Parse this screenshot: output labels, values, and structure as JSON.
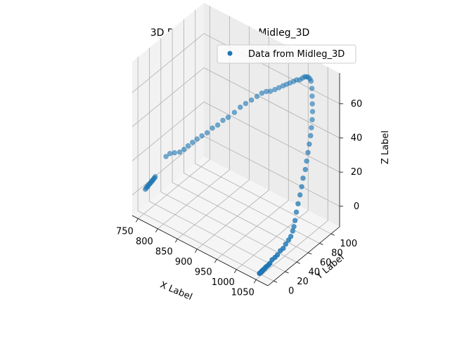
{
  "chart_data": {
    "type": "scatter",
    "projection": "3d",
    "title": "3D Plot for Data from Midleg_3D",
    "xlabel": "X Label",
    "ylabel": "Y Label",
    "zlabel": "Z Label",
    "x_ticks": [
      "750",
      "800",
      "850",
      "900",
      "950",
      "1000",
      "1050"
    ],
    "y_ticks": [
      "0",
      "20",
      "40",
      "60",
      "80",
      "100"
    ],
    "z_ticks": [
      "0",
      "20",
      "40",
      "60"
    ],
    "xlim": [
      735,
      1080
    ],
    "ylim": [
      -10,
      115
    ],
    "zlim": [
      -12,
      78
    ],
    "grid": true,
    "legend": {
      "position": "top-right",
      "entries": [
        "Data from Midleg_3D"
      ]
    },
    "color": "#1f77b4",
    "series": [
      {
        "name": "Data from Midleg_3D",
        "points": [
          [
            751,
            2,
            2
          ],
          [
            752,
            3,
            2.5
          ],
          [
            752,
            4,
            3
          ],
          [
            753,
            5,
            3
          ],
          [
            753,
            6,
            3.5
          ],
          [
            754,
            7,
            4
          ],
          [
            754,
            8,
            4
          ],
          [
            755,
            9,
            4.5
          ],
          [
            755,
            10,
            5
          ],
          [
            756,
            11,
            5
          ],
          [
            756,
            12,
            5.5
          ],
          [
            757,
            13,
            6
          ],
          [
            757,
            14,
            6
          ],
          [
            757,
            15,
            6.5
          ],
          [
            786,
            14,
            22
          ],
          [
            793,
            16,
            24
          ],
          [
            802,
            18,
            25
          ],
          [
            812,
            20,
            26
          ],
          [
            820,
            22,
            28
          ],
          [
            826,
            25,
            30
          ],
          [
            833,
            28,
            32
          ],
          [
            840,
            31,
            34
          ],
          [
            848,
            34,
            36
          ],
          [
            857,
            37,
            38
          ],
          [
            866,
            40,
            41
          ],
          [
            875,
            43,
            43
          ],
          [
            884,
            46,
            46
          ],
          [
            893,
            49,
            48
          ],
          [
            903,
            53,
            51
          ],
          [
            912,
            57,
            54
          ],
          [
            920,
            61,
            56
          ],
          [
            929,
            65,
            58
          ],
          [
            937,
            69,
            60
          ],
          [
            945,
            72,
            62
          ],
          [
            952,
            75,
            63
          ],
          [
            958,
            78,
            63
          ],
          [
            965,
            81,
            64
          ],
          [
            971,
            84,
            65
          ],
          [
            977,
            87,
            66
          ],
          [
            983,
            89,
            67
          ],
          [
            989,
            91,
            68
          ],
          [
            995,
            93,
            69
          ],
          [
            1000,
            95,
            70
          ],
          [
            1005,
            97,
            70
          ],
          [
            1009,
            99,
            71
          ],
          [
            1013,
            100,
            72
          ],
          [
            1016,
            101,
            72
          ],
          [
            1019,
            102,
            72
          ],
          [
            1022,
            103,
            71
          ],
          [
            1025,
            103,
            70
          ],
          [
            1027,
            103,
            66
          ],
          [
            1029,
            102,
            62
          ],
          [
            1031,
            101,
            58
          ],
          [
            1033,
            100,
            54
          ],
          [
            1035,
            98,
            50
          ],
          [
            1036,
            96,
            46
          ],
          [
            1037,
            94,
            42
          ],
          [
            1038,
            91,
            38
          ],
          [
            1039,
            88,
            34
          ],
          [
            1040,
            85,
            30
          ],
          [
            1041,
            82,
            26
          ],
          [
            1041,
            78,
            22
          ],
          [
            1042,
            75,
            18
          ],
          [
            1042,
            72,
            14
          ],
          [
            1043,
            68,
            10
          ],
          [
            1043,
            65,
            6
          ],
          [
            1044,
            62,
            2
          ],
          [
            1044,
            60,
            -1
          ],
          [
            1044,
            58,
            -3
          ],
          [
            1045,
            54,
            -5
          ],
          [
            1045,
            50,
            -6
          ],
          [
            1045,
            45,
            -7
          ],
          [
            1046,
            40,
            -8
          ],
          [
            1046,
            35,
            -8
          ],
          [
            1046,
            30,
            -9
          ],
          [
            1047,
            25,
            -9
          ],
          [
            1047,
            20,
            -9
          ],
          [
            1047,
            16,
            -10
          ],
          [
            1048,
            13,
            -10
          ],
          [
            1048,
            10,
            -10
          ],
          [
            1048,
            8,
            -10
          ],
          [
            1049,
            6,
            -10
          ],
          [
            1049,
            4,
            -10
          ],
          [
            1049,
            3,
            -10
          ],
          [
            1049,
            2,
            -10
          ],
          [
            1049,
            1,
            -10
          ],
          [
            1050,
            0,
            -10
          ],
          [
            1050,
            -1,
            -10
          ],
          [
            1050,
            -2,
            -10
          ],
          [
            1050,
            -3,
            -10
          ],
          [
            1050,
            -4,
            -10
          ]
        ]
      }
    ]
  }
}
